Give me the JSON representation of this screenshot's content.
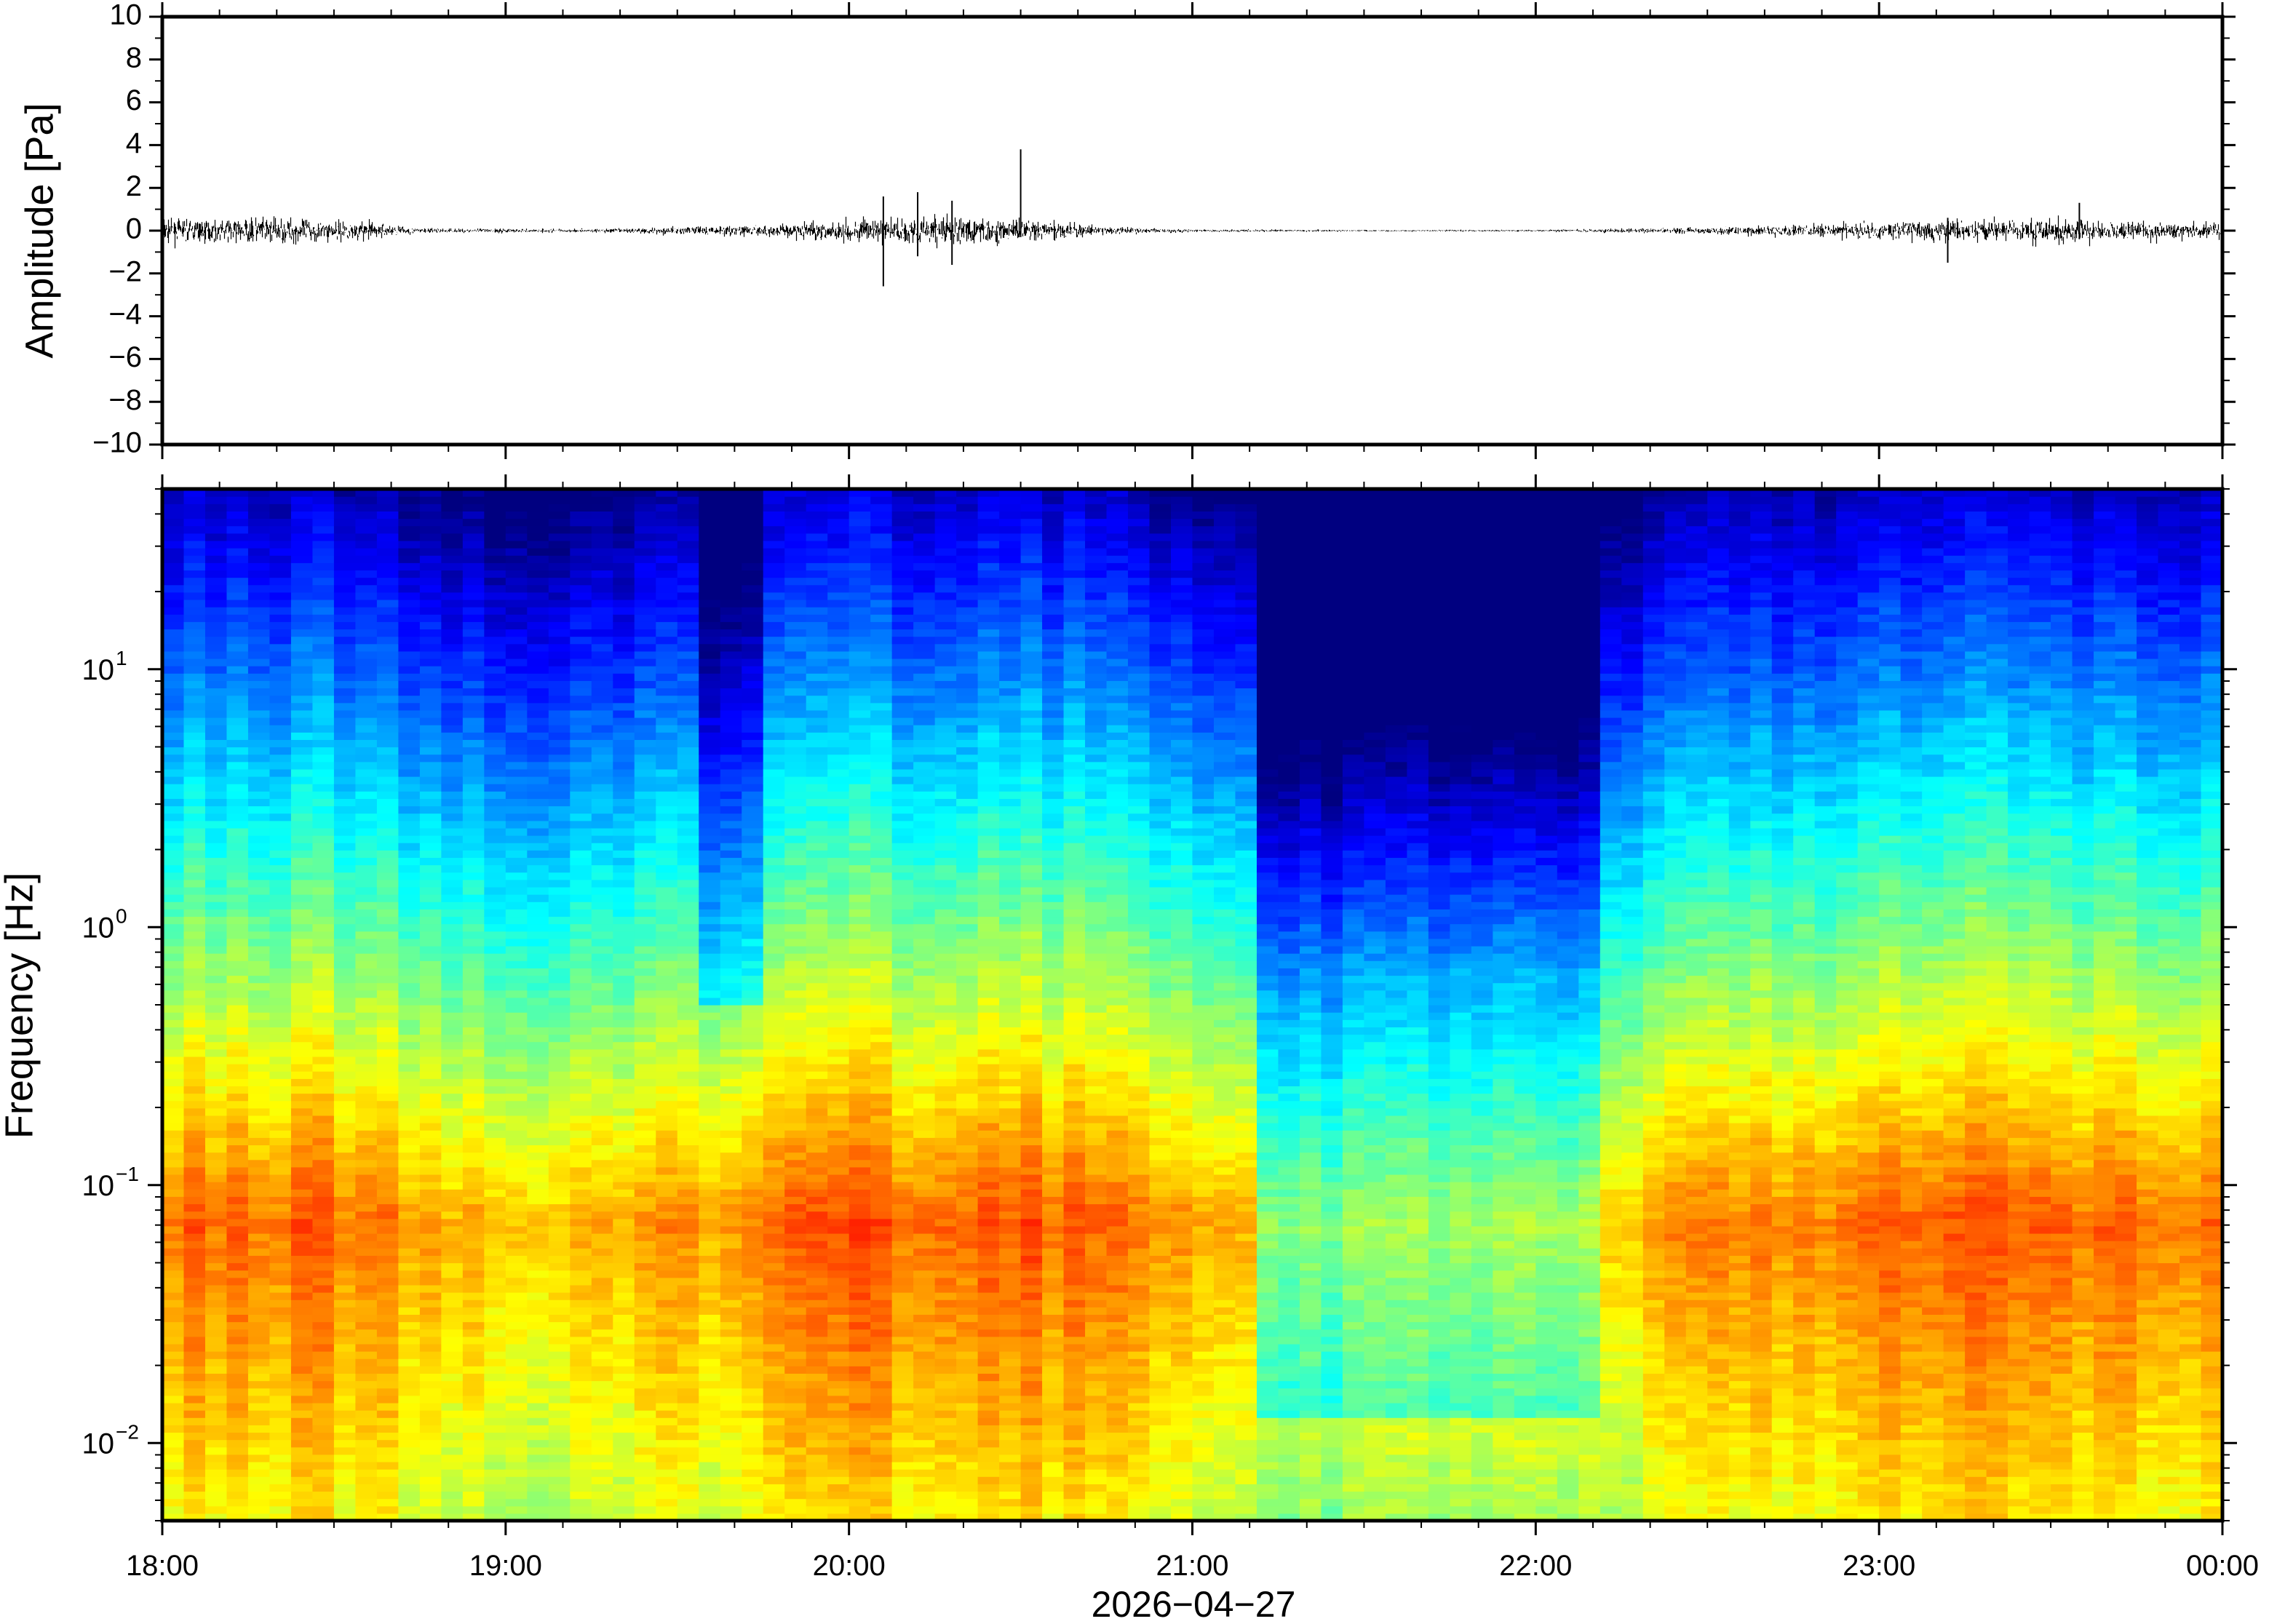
{
  "chart_data": [
    {
      "type": "line",
      "panel": "waveform",
      "ylabel": "Amplitude [Pa]",
      "ylim": [
        -10,
        10
      ],
      "yticks": [
        "10",
        "8",
        "6",
        "4",
        "2",
        "0",
        "−2",
        "−4",
        "−6",
        "−8",
        "−10"
      ],
      "ytick_values": [
        10,
        8,
        6,
        4,
        2,
        0,
        -2,
        -4,
        -6,
        -8,
        -10
      ],
      "x_start": "18:00",
      "x_end": "00:00",
      "line_color": "#000000",
      "envelope": {
        "times_h": [
          18.0,
          18.3,
          18.6,
          18.75,
          19.25,
          19.75,
          20.0,
          20.25,
          20.5,
          20.75,
          21.0,
          21.5,
          22.0,
          22.5,
          22.75,
          23.0,
          23.25,
          23.5,
          23.75,
          24.0
        ],
        "noise_pa": [
          0.35,
          0.45,
          0.3,
          0.08,
          0.06,
          0.2,
          0.35,
          0.5,
          0.4,
          0.12,
          0.05,
          0.03,
          0.03,
          0.12,
          0.2,
          0.3,
          0.4,
          0.38,
          0.3,
          0.28
        ]
      },
      "spikes": [
        {
          "time": "20:06",
          "min": -2.6,
          "max": 1.6
        },
        {
          "time": "20:12",
          "min": -1.2,
          "max": 1.8
        },
        {
          "time": "20:18",
          "min": -1.6,
          "max": 1.4
        },
        {
          "time": "20:30",
          "min": -0.3,
          "max": 3.8
        },
        {
          "time": "23:12",
          "min": -1.5,
          "max": 0.6
        },
        {
          "time": "23:35",
          "min": -0.4,
          "max": 1.3
        }
      ]
    },
    {
      "type": "heatmap",
      "panel": "spectrogram",
      "ylabel": "Frequency [Hz]",
      "yscale": "log",
      "ylim_hz": [
        0.005,
        50
      ],
      "ytick_values": [
        0.01,
        0.1,
        1,
        10
      ],
      "xticks": [
        "18:00",
        "19:00",
        "20:00",
        "21:00",
        "22:00",
        "23:00",
        "00:00"
      ],
      "xlabel": "2026−04−27",
      "colormap": "jet",
      "power_profile": {
        "freq_hz": [
          0.005,
          0.01,
          0.02,
          0.05,
          0.1,
          0.2,
          0.5,
          1,
          2,
          5,
          10,
          20,
          50
        ],
        "quiet_period": [
          "21:10",
          "22:10"
        ],
        "quiet_notch": [
          "19:35",
          "19:45"
        ]
      }
    }
  ]
}
